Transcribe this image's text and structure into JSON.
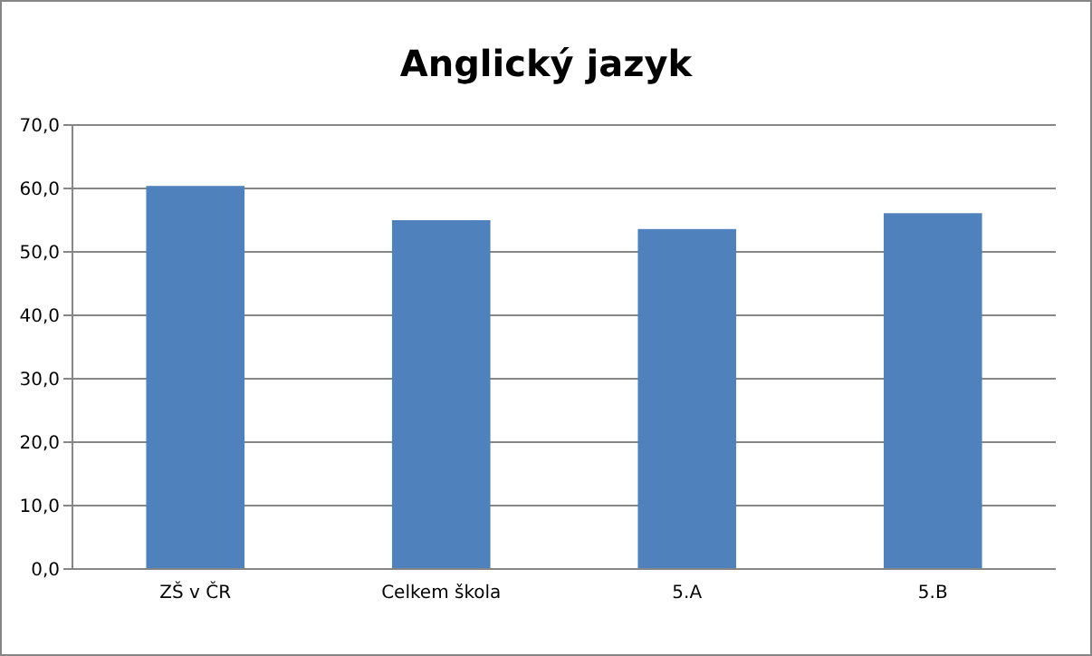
{
  "chart_data": {
    "type": "bar",
    "title": "Anglický jazyk",
    "categories": [
      "ZŠ v ČR",
      "Celkem škola",
      "5.A",
      "5.B"
    ],
    "values": [
      60.4,
      55.0,
      53.6,
      56.1
    ],
    "color": "#4f81bd",
    "ylim": [
      0,
      70
    ],
    "yticks": [
      {
        "value": 0,
        "label": "0,0"
      },
      {
        "value": 10,
        "label": "10,0"
      },
      {
        "value": 20,
        "label": "20,0"
      },
      {
        "value": 30,
        "label": "30,0"
      },
      {
        "value": 40,
        "label": "40,0"
      },
      {
        "value": 50,
        "label": "50,0"
      },
      {
        "value": 60,
        "label": "60,0"
      },
      {
        "value": 70,
        "label": "70,0"
      }
    ],
    "grid": "y"
  }
}
